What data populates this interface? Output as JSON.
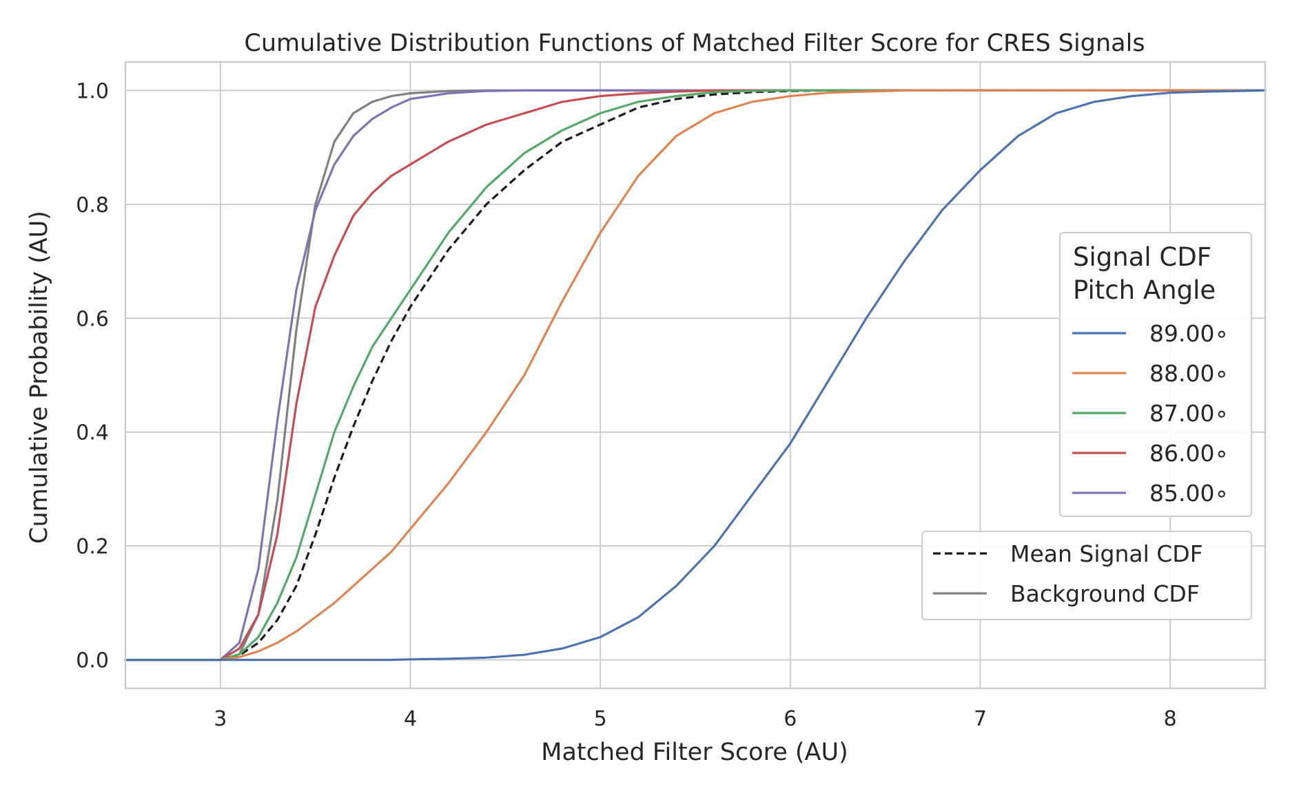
{
  "chart_data": {
    "type": "line",
    "title": "Cumulative Distribution Functions of Matched Filter Score for CRES Signals",
    "xlabel": "Matched Filter Score (AU)",
    "ylabel": "Cumulative Probability (AU)",
    "xlim": [
      2.5,
      8.5
    ],
    "ylim": [
      -0.05,
      1.05
    ],
    "xticks": [
      3,
      4,
      5,
      6,
      7,
      8
    ],
    "xtick_labels": [
      "3",
      "4",
      "5",
      "6",
      "7",
      "8"
    ],
    "yticks": [
      0.0,
      0.2,
      0.4,
      0.6,
      0.8,
      1.0
    ],
    "ytick_labels": [
      "0.0",
      "0.2",
      "0.4",
      "0.6",
      "0.8",
      "1.0"
    ],
    "grid": true,
    "x": [
      2.5,
      3.0,
      3.1,
      3.2,
      3.3,
      3.4,
      3.5,
      3.6,
      3.7,
      3.8,
      3.9,
      4.0,
      4.2,
      4.4,
      4.6,
      4.8,
      5.0,
      5.2,
      5.4,
      5.6,
      5.8,
      6.0,
      6.2,
      6.4,
      6.6,
      6.8,
      7.0,
      7.2,
      7.4,
      7.6,
      7.8,
      8.0,
      8.2,
      8.5
    ],
    "series": [
      {
        "name": "89.00∘",
        "color": "#4c72b0",
        "style": "solid",
        "values": [
          0,
          0,
          0,
          0,
          0,
          0,
          0,
          0,
          0,
          0,
          0,
          0.001,
          0.002,
          0.004,
          0.009,
          0.02,
          0.04,
          0.075,
          0.13,
          0.2,
          0.29,
          0.38,
          0.49,
          0.6,
          0.7,
          0.79,
          0.86,
          0.92,
          0.96,
          0.98,
          0.99,
          0.996,
          0.998,
          1.0
        ]
      },
      {
        "name": "88.00∘",
        "color": "#dd8452",
        "style": "solid",
        "values": [
          0,
          0,
          0.005,
          0.015,
          0.03,
          0.05,
          0.075,
          0.1,
          0.13,
          0.16,
          0.19,
          0.23,
          0.31,
          0.4,
          0.5,
          0.63,
          0.75,
          0.85,
          0.92,
          0.96,
          0.98,
          0.99,
          0.996,
          0.998,
          1.0,
          1.0,
          1.0,
          1.0,
          1.0,
          1.0,
          1.0,
          1.0,
          1.0,
          1.0
        ]
      },
      {
        "name": "87.00∘",
        "color": "#55a868",
        "style": "solid",
        "values": [
          0,
          0,
          0.01,
          0.04,
          0.1,
          0.18,
          0.29,
          0.4,
          0.48,
          0.55,
          0.6,
          0.65,
          0.75,
          0.83,
          0.89,
          0.93,
          0.96,
          0.98,
          0.99,
          0.997,
          0.999,
          1.0,
          1.0,
          1.0,
          1.0,
          1.0,
          1.0,
          1.0,
          1.0,
          1.0,
          1.0,
          1.0,
          1.0,
          1.0
        ]
      },
      {
        "name": "86.00∘",
        "color": "#c44e52",
        "style": "solid",
        "values": [
          0,
          0,
          0.02,
          0.08,
          0.22,
          0.45,
          0.62,
          0.71,
          0.78,
          0.82,
          0.85,
          0.87,
          0.91,
          0.94,
          0.96,
          0.98,
          0.99,
          0.995,
          0.998,
          1.0,
          1.0,
          1.0,
          1.0,
          1.0,
          1.0,
          1.0,
          1.0,
          1.0,
          1.0,
          1.0,
          1.0,
          1.0,
          1.0,
          1.0
        ]
      },
      {
        "name": "85.00∘",
        "color": "#8172b3",
        "style": "solid",
        "values": [
          0,
          0,
          0.03,
          0.16,
          0.42,
          0.65,
          0.79,
          0.87,
          0.92,
          0.95,
          0.97,
          0.985,
          0.995,
          0.999,
          1.0,
          1.0,
          1.0,
          1.0,
          1.0,
          1.0,
          1.0,
          1.0,
          1.0,
          1.0,
          1.0,
          1.0,
          1.0,
          1.0,
          1.0,
          1.0,
          1.0,
          1.0,
          1.0,
          1.0
        ]
      },
      {
        "name": "Mean Signal CDF",
        "color": "#1a1a1a",
        "style": "dashed",
        "values": [
          0,
          0,
          0.008,
          0.03,
          0.07,
          0.13,
          0.22,
          0.32,
          0.41,
          0.49,
          0.56,
          0.62,
          0.72,
          0.8,
          0.86,
          0.91,
          0.94,
          0.97,
          0.985,
          0.993,
          0.997,
          0.999,
          1.0,
          1.0,
          1.0,
          1.0,
          1.0,
          1.0,
          1.0,
          1.0,
          1.0,
          1.0,
          1.0,
          1.0
        ]
      },
      {
        "name": "Background CDF",
        "color": "#808080",
        "style": "solid",
        "values": [
          0,
          0,
          0.01,
          0.08,
          0.28,
          0.58,
          0.8,
          0.91,
          0.96,
          0.98,
          0.99,
          0.995,
          0.999,
          1.0,
          1.0,
          1.0,
          1.0,
          1.0,
          1.0,
          1.0,
          1.0,
          1.0,
          1.0,
          1.0,
          1.0,
          1.0,
          1.0,
          1.0,
          1.0,
          1.0,
          1.0,
          1.0,
          1.0,
          1.0
        ]
      }
    ],
    "legend": {
      "position": "right",
      "signal_title_line1": "Signal CDF",
      "signal_title_line2": "Pitch Angle",
      "signal_entries": [
        "89.00∘",
        "88.00∘",
        "87.00∘",
        "86.00∘",
        "85.00∘"
      ],
      "reference_entries": [
        "Mean Signal CDF",
        "Background CDF"
      ]
    }
  }
}
